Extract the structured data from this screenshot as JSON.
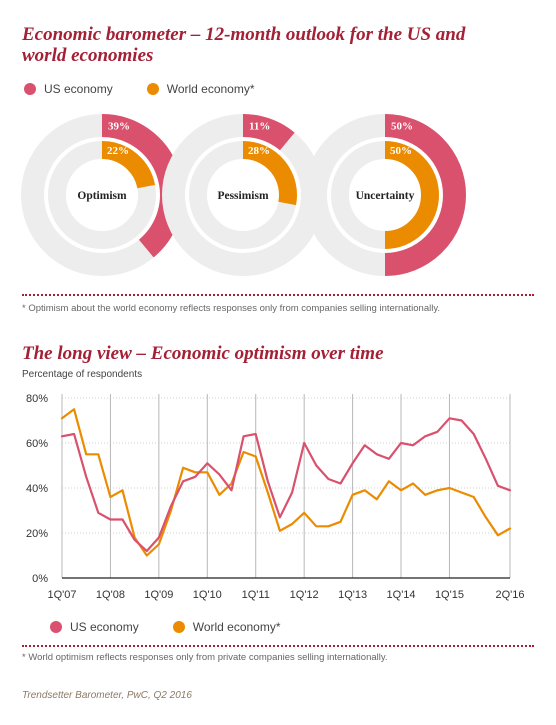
{
  "colors": {
    "us": "#d9516d",
    "world": "#eb8c00",
    "ring": "#ededed",
    "accent": "#a32035"
  },
  "title_top": "Economic barometer – 12-month outlook for the US and world economies",
  "legend_top": {
    "us": "US economy",
    "world": "World economy*"
  },
  "donuts": [
    {
      "label": "Optimism",
      "us_label": "39%",
      "world_label": "22%"
    },
    {
      "label": "Pessimism",
      "us_label": "11%",
      "world_label": "28%"
    },
    {
      "label": "Uncertainty",
      "us_label": "50%",
      "world_label": "50%"
    }
  ],
  "footnote_top": "* Optimism about the world economy reflects responses only from companies selling internationally.",
  "title_bottom": "The long view – Economic optimism over time",
  "footnote_bottom": "* World optimism reflects responses only from private companies selling internationally.",
  "source": "Trendsetter Barometer, PwC, Q2 2016",
  "chart_data": [
    {
      "type": "pie",
      "title": "Optimism",
      "series": [
        {
          "name": "US economy",
          "values": [
            39
          ]
        },
        {
          "name": "World economy*",
          "values": [
            22
          ]
        }
      ]
    },
    {
      "type": "pie",
      "title": "Pessimism",
      "series": [
        {
          "name": "US economy",
          "values": [
            11
          ]
        },
        {
          "name": "World economy*",
          "values": [
            28
          ]
        }
      ]
    },
    {
      "type": "pie",
      "title": "Uncertainty",
      "series": [
        {
          "name": "US economy",
          "values": [
            50
          ]
        },
        {
          "name": "World economy*",
          "values": [
            50
          ]
        }
      ]
    },
    {
      "type": "line",
      "ylabel": "Percentage of respondents",
      "ylim": [
        0,
        80
      ],
      "yticks": [
        "0%",
        "20%",
        "40%",
        "60%",
        "80%"
      ],
      "xticks": [
        "1Q'07",
        "1Q'08",
        "1Q'09",
        "1Q'10",
        "1Q'11",
        "1Q'12",
        "1Q'13",
        "1Q'14",
        "1Q'15",
        "2Q'16"
      ],
      "x_note": "quarterly points, 1Q'07 through 2Q'16",
      "grid": "vertical gridlines at each year",
      "legend": "bottom",
      "legend_labels": {
        "us": "US economy",
        "world": "World economy*"
      },
      "series": [
        {
          "name": "US economy",
          "values": [
            63,
            64,
            45,
            29,
            26,
            26,
            17,
            12,
            18,
            32,
            43,
            45,
            51,
            46,
            39,
            63,
            64,
            43,
            27,
            38,
            60,
            50,
            44,
            42,
            51,
            59,
            55,
            53,
            60,
            59,
            63,
            65,
            71,
            70,
            64,
            53,
            41,
            39
          ]
        },
        {
          "name": "World economy*",
          "values": [
            71,
            75,
            55,
            55,
            36,
            39,
            18,
            10,
            15,
            30,
            49,
            47,
            47,
            37,
            42,
            56,
            54,
            38,
            21,
            24,
            29,
            23,
            23,
            25,
            37,
            39,
            35,
            43,
            39,
            42,
            37,
            39,
            40,
            38,
            36,
            27,
            19,
            22
          ]
        }
      ]
    }
  ]
}
